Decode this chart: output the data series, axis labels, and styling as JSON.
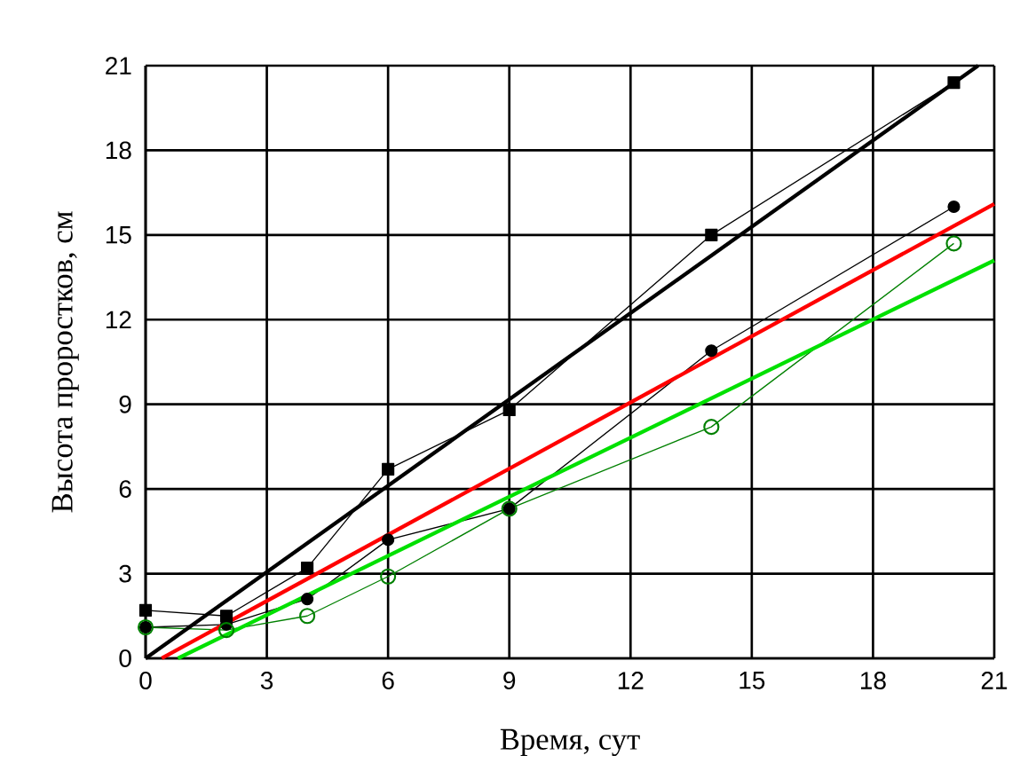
{
  "chart_data": {
    "type": "line",
    "xlabel": "Время, сут",
    "ylabel": "Высота проростков, см",
    "xlim": [
      0,
      21
    ],
    "ylim": [
      0,
      21
    ],
    "xticks": [
      0,
      3,
      6,
      9,
      12,
      15,
      18,
      21
    ],
    "yticks": [
      0,
      3,
      6,
      9,
      12,
      15,
      18,
      21
    ],
    "grid": true,
    "series": [
      {
        "color": "#000000",
        "marker": "square",
        "x": [
          0,
          2,
          4,
          6,
          9,
          14,
          20
        ],
        "values": [
          1.7,
          1.5,
          3.2,
          6.7,
          8.8,
          15.0,
          20.4
        ]
      },
      {
        "color": "#000000",
        "marker": "circle",
        "x": [
          0,
          2,
          4,
          6,
          9,
          14,
          20
        ],
        "values": [
          1.1,
          1.2,
          2.1,
          4.2,
          5.3,
          10.9,
          16.0
        ]
      },
      {
        "color": "#008000",
        "marker": "circle",
        "x": [
          0,
          2,
          4,
          6,
          9,
          14,
          20
        ],
        "values": [
          1.1,
          1.0,
          1.5,
          2.9,
          5.3,
          8.2,
          14.7
        ]
      },
      {
        "color": "#000000",
        "marker": "none",
        "x": [
          0,
          20.6
        ],
        "values": [
          0,
          21
        ]
      },
      {
        "color": "#ff0000",
        "marker": "none",
        "x": [
          0.4,
          21
        ],
        "values": [
          0,
          16.1
        ]
      },
      {
        "color": "#00e000",
        "marker": "none",
        "x": [
          0.8,
          21
        ],
        "values": [
          0,
          14.1
        ]
      }
    ]
  }
}
